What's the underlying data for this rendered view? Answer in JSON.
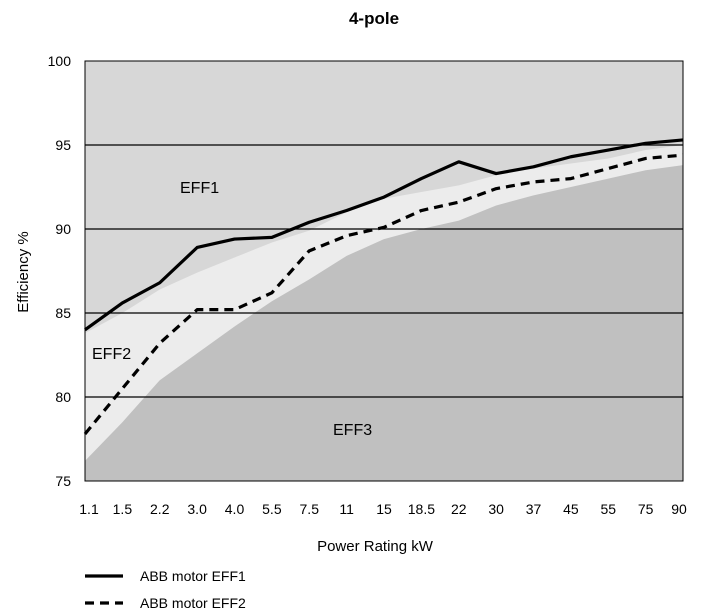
{
  "chart_data": {
    "type": "area",
    "title": "4-pole",
    "xlabel": "Power Rating kW",
    "ylabel": "Efficiency %",
    "categories": [
      "1.1",
      "1.5",
      "2.2",
      "3.0",
      "4.0",
      "5.5",
      "7.5",
      "11",
      "15",
      "18.5",
      "22",
      "30",
      "37",
      "45",
      "55",
      "75",
      "90"
    ],
    "ylim": [
      75,
      100
    ],
    "yticks": [
      "75",
      "80",
      "85",
      "90",
      "95",
      "100"
    ],
    "grid": "horizontal",
    "legend_position": "bottom-left",
    "regions": [
      {
        "name": "EFF1",
        "label_position": "upper-left",
        "color": "#d7d7d7"
      },
      {
        "name": "EFF2",
        "label_position": "left",
        "color": "#ececec"
      },
      {
        "name": "EFF3",
        "label_position": "center",
        "color": "#c0c0c0"
      }
    ],
    "boundaries": [
      {
        "between": [
          "EFF1",
          "EFF2"
        ],
        "values": [
          83.8,
          85.0,
          86.4,
          87.4,
          88.3,
          89.2,
          89.9,
          91.0,
          91.8,
          92.2,
          92.6,
          93.2,
          93.6,
          93.9,
          94.2,
          94.7,
          95.0
        ]
      },
      {
        "between": [
          "EFF2",
          "EFF3"
        ],
        "values": [
          76.2,
          78.5,
          81.0,
          82.6,
          84.2,
          85.7,
          87.0,
          88.4,
          89.4,
          90.0,
          90.5,
          91.4,
          92.0,
          92.5,
          93.0,
          93.5,
          93.8
        ]
      }
    ],
    "series": [
      {
        "name": "ABB motor EFF1",
        "style": "solid",
        "values": [
          84.0,
          85.6,
          86.8,
          88.9,
          89.4,
          89.5,
          90.4,
          91.1,
          91.9,
          93.0,
          94.0,
          93.3,
          93.7,
          94.3,
          94.7,
          95.1,
          95.3
        ]
      },
      {
        "name": "ABB motor EFF2",
        "style": "dashed",
        "values": [
          77.8,
          80.5,
          83.2,
          85.2,
          85.2,
          86.2,
          88.7,
          89.6,
          90.1,
          91.1,
          91.6,
          92.4,
          92.8,
          93.0,
          93.6,
          94.2,
          94.4
        ]
      }
    ],
    "colors": {
      "background": "#ffffff",
      "line": "#000000",
      "gridline": "#000000"
    }
  }
}
